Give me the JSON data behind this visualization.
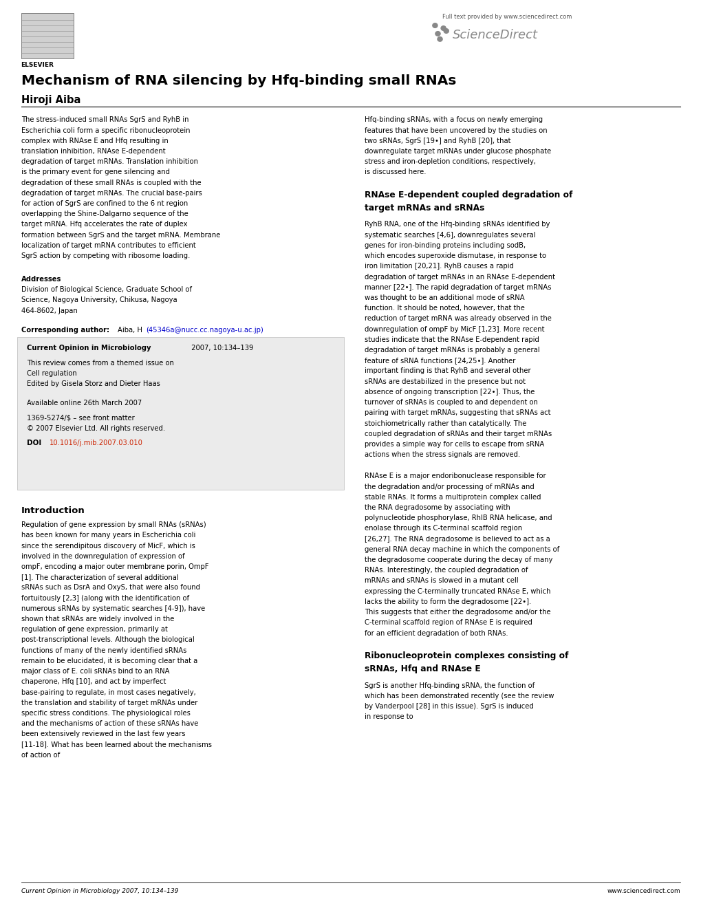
{
  "title": "Mechanism of RNA silencing by Hfq-binding small RNAs",
  "author": "Hiroji Aiba",
  "bg_color": "#ffffff",
  "page_width": 10.2,
  "page_height": 13.23,
  "abstract_left": "The stress-induced small RNAs SgrS and RyhB in Escherichia coli form a specific ribonucleoprotein complex with RNAse E and Hfq resulting in translation inhibition, RNAse E-dependent degradation of target mRNAs. Translation inhibition is the primary event for gene silencing and degradation of these small RNAs is coupled with the degradation of target mRNAs. The crucial base-pairs for action of SgrS are confined to the 6 nt region overlapping the Shine-Dalgarno sequence of the target mRNA. Hfq accelerates the rate of duplex formation between SgrS and the target mRNA. Membrane localization of target mRNA contributes to efficient SgrS action by competing with ribosome loading.",
  "addresses_label": "Addresses",
  "addresses_text": "Division of Biological Science, Graduate School of Science, Nagoya University, Chikusa, Nagoya 464-8602, Japan",
  "corresponding_label": "Corresponding author:",
  "corresponding_text": "Aiba, H (45346a@nucc.cc.nagoya-u.ac.jp)",
  "journal_info": "Current Opinion in Microbiology 2007, 10:134-139",
  "themed_issue": "This review comes from a themed issue on\nCell regulation\nEdited by Gisela Storz and Dieter Haas",
  "available_online": "Available online 26th March 2007",
  "issn": "1369-5274/$ – see front matter",
  "copyright": "© 2007 Elsevier Ltd. All rights reserved.",
  "doi_label": "DOI",
  "doi_text": "10.1016/j.mib.2007.03.010",
  "abstract_right": "Hfq-binding sRNAs, with a focus on newly emerging features that have been uncovered by the studies on two sRNAs, SgrS [19•] and RyhB [20], that downregulate target mRNAs under glucose phosphate stress and iron-depletion conditions, respectively, is discussed here.",
  "section1_title": "RNAse E-dependent coupled degradation of target mRNAs and sRNAs",
  "section1_text": "RyhB RNA, one of the Hfq-binding sRNAs identified by systematic searches [4,6], downregulates several genes for iron-binding proteins including sodB, which encodes superoxide dismutase, in response to iron limitation [20,21]. RyhB causes a rapid degradation of target mRNAs in an RNAse E-dependent manner [22•]. The rapid degradation of target mRNAs was thought to be an additional mode of sRNA function. It should be noted, however, that the reduction of target mRNA was already observed in the downregulation of ompF by MicF [1,23]. More recent studies indicate that the RNAse E-dependent rapid degradation of target mRNAs is probably a general feature of sRNA functions [24,25•]. Another important finding is that RyhB and several other sRNAs are destabilized in the presence but not absence of ongoing transcription [22•]. Thus, the turnover of sRNAs is coupled to and dependent on pairing with target mRNAs, suggesting that sRNAs act stoichiometrically rather than catalytically. The coupled degradation of sRNAs and their target mRNAs provides a simple way for cells to escape from sRNA actions when the stress signals are removed.",
  "intro_title": "Introduction",
  "intro_text": "Regulation of gene expression by small RNAs (sRNAs) has been known for many years in Escherichia coli since the serendipitous discovery of MicF, which is involved in the downregulation of expression of ompF, encoding a major outer membrane porin, OmpF [1]. The characterization of several additional sRNAs such as DsrA and OxyS, that were also found fortuitously [2,3] (along with the identification of numerous sRNAs by systematic searches [4-9]), have shown that sRNAs are widely involved in the regulation of gene expression, primarily at post-transcriptional levels. Although the biological functions of many of the newly identified sRNAs remain to be elucidated, it is becoming clear that a major class of E. coli sRNAs bind to an RNA chaperone, Hfq [10], and act by imperfect base-pairing to regulate, in most cases negatively, the translation and stability of target mRNAs under specific stress conditions. The physiological roles and the mechanisms of action of these sRNAs have been extensively reviewed in the last few years [11-18]. What has been learned about the mechanisms of action of",
  "rnase_text": "RNAse E is a major endoribonuclease responsible for the degradation and/or processing of mRNAs and stable RNAs. It forms a multiprotein complex called the RNA degradosome by associating with polynucleotide phosphorylase, RhlB RNA helicase, and enolase through its C-terminal scaffold region [26,27]. The RNA degradosome is believed to act as a general RNA decay machine in which the components of the degradosome cooperate during the decay of many RNAs. Interestingly, the coupled degradation of mRNAs and sRNAs is slowed in a mutant cell expressing the C-terminally truncated RNAse E, which lacks the ability to form the degradosome [22•]. This suggests that either the degradosome and/or the C-terminal scaffold region of RNAse E is required for an efficient degradation of both RNAs.",
  "section3_title": "Ribonucleoprotein complexes consisting of sRNAs, Hfq and RNAse E",
  "section3_text": "SgrS is another Hfq-binding sRNA, the function of which has been demonstrated recently (see the review by Vanderpool [28] in this issue). SgrS is induced in response to",
  "footer_left": "Current Opinion in Microbiology 2007, 10:134–139",
  "footer_right": "www.sciencedirect.com",
  "elsevier_text": "ELSEVIER",
  "sciencedirect_text": "ScienceDirect",
  "sd_caption": "Full text provided by www.sciencedirect.com"
}
